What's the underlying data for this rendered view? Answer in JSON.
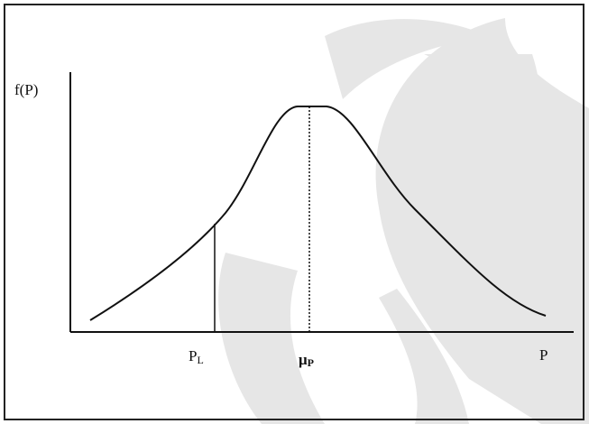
{
  "diagram": {
    "y_axis_label": "f(P)",
    "x_axis_label": "P",
    "markers": [
      {
        "symbol": "P",
        "subscript": "L"
      },
      {
        "symbol": "μ",
        "subscript": "P"
      }
    ]
  }
}
